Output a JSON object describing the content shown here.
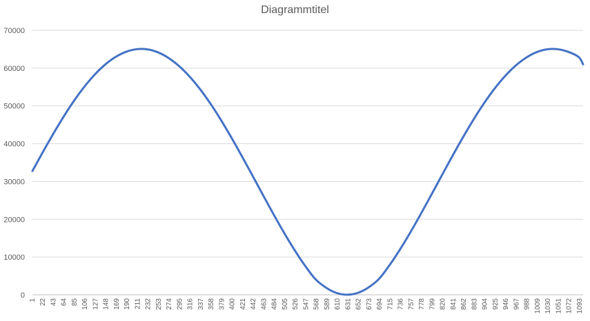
{
  "chart_data": {
    "type": "line",
    "title": "Diagrammtitel",
    "xlabel": "",
    "ylabel": "",
    "x_range": [
      1,
      1100
    ],
    "ylim": [
      0,
      70000
    ],
    "y_ticks": [
      0,
      10000,
      20000,
      30000,
      40000,
      50000,
      60000,
      70000
    ],
    "x_tick_labels": [
      "1",
      "22",
      "43",
      "64",
      "85",
      "106",
      "127",
      "148",
      "169",
      "190",
      "211",
      "232",
      "253",
      "274",
      "295",
      "316",
      "337",
      "358",
      "379",
      "400",
      "421",
      "442",
      "463",
      "484",
      "505",
      "526",
      "547",
      "568",
      "589",
      "610",
      "631",
      "652",
      "673",
      "694",
      "715",
      "736",
      "757",
      "778",
      "799",
      "820",
      "841",
      "862",
      "883",
      "904",
      "925",
      "946",
      "967",
      "988",
      "1009",
      "1030",
      "1051",
      "1072",
      "1093"
    ],
    "grid": "horizontal",
    "legend": "none",
    "series": [
      {
        "color": "#4472C4",
        "x": [
          1,
          20,
          41,
          62,
          83,
          104,
          125,
          146,
          167,
          188,
          209,
          230,
          251,
          272,
          293,
          314,
          335,
          356,
          377,
          398,
          419,
          440,
          461,
          482,
          503,
          524,
          545,
          566,
          587,
          608,
          629,
          650,
          671,
          692,
          713,
          734,
          755,
          776,
          797,
          818,
          839,
          860,
          881,
          902,
          923,
          944,
          965,
          986,
          1007,
          1028,
          1049,
          1070,
          1091,
          1100
        ],
        "values": [
          32768,
          37350,
          42240,
          46880,
          51150,
          54960,
          58240,
          60920,
          62960,
          64320,
          65000,
          64960,
          64200,
          62740,
          60610,
          57850,
          54510,
          50640,
          46320,
          41640,
          36690,
          31590,
          26440,
          21360,
          16470,
          11880,
          7720,
          4120,
          1900,
          500,
          30,
          500,
          1900,
          4120,
          7720,
          11880,
          16470,
          21360,
          26440,
          31590,
          36690,
          41640,
          46320,
          50640,
          54510,
          57850,
          60610,
          62740,
          64200,
          64960,
          65000,
          64320,
          62960,
          61000
        ]
      }
    ]
  }
}
